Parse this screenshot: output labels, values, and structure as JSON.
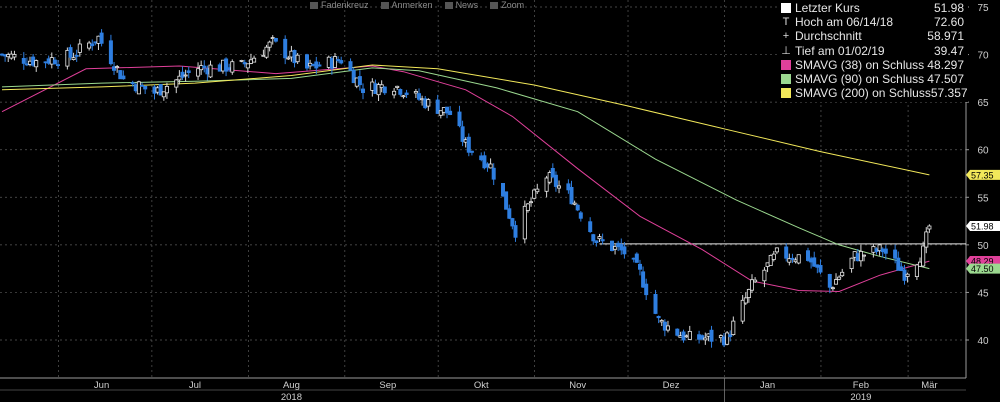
{
  "toolbar": {
    "items": [
      {
        "label": "Fadenkreuz",
        "icon": "crosshair-icon"
      },
      {
        "label": "Anmerken",
        "icon": "pencil-icon"
      },
      {
        "label": "News",
        "icon": "news-icon"
      },
      {
        "label": "Zoom",
        "icon": "zoom-icon"
      }
    ]
  },
  "legend": {
    "rows": [
      {
        "label": "Letzter Kurs",
        "value": "51.98",
        "marker": "square",
        "color": "#ffffff"
      },
      {
        "label": "Hoch am 06/14/18",
        "value": "72.60",
        "marker": "T"
      },
      {
        "label": "Durchschnitt",
        "value": "58.971",
        "marker": "+"
      },
      {
        "label": "Tief am 01/02/19",
        "value": "39.47",
        "marker": "⊥"
      },
      {
        "label": "SMAVG (38)  on Schluss",
        "value": "48.297",
        "marker": "square",
        "color": "#e0409a"
      },
      {
        "label": "SMAVG (90)  on Schluss",
        "value": "47.507",
        "marker": "square",
        "color": "#9bd88f"
      },
      {
        "label": "SMAVG (200)  on Schluss",
        "value": "57.357",
        "marker": "square",
        "color": "#f2e85a"
      }
    ]
  },
  "chart_data": {
    "type": "candlestick",
    "x_labels": [
      "Jun",
      "Jul",
      "Aug",
      "Sep",
      "Okt",
      "Nov",
      "Dez",
      "Jan",
      "Feb",
      "Mär"
    ],
    "year_labels": [
      "2018",
      "2019"
    ],
    "yticks": [
      40,
      45,
      50,
      55,
      60,
      65,
      70,
      75
    ],
    "ylim": [
      38,
      75.5
    ],
    "grid": true,
    "reference_line": 50.1,
    "right_tags": [
      {
        "text": "57.35",
        "value": 57.357,
        "color": "#f2e85a"
      },
      {
        "text": "51.98",
        "value": 51.98,
        "color": "#ffffff"
      },
      {
        "text": "48.29",
        "value": 48.297,
        "color": "#e0409a"
      },
      {
        "text": "47.50",
        "value": 47.507,
        "color": "#9bd88f"
      }
    ],
    "close_anchors": [
      [
        "2018-05-14",
        70.0
      ],
      [
        "2018-05-25",
        69.3
      ],
      [
        "2018-06-05",
        69.8
      ],
      [
        "2018-06-14",
        71.8
      ],
      [
        "2018-06-22",
        67.4
      ],
      [
        "2018-07-02",
        66.0
      ],
      [
        "2018-07-16",
        68.6
      ],
      [
        "2018-07-30",
        68.8
      ],
      [
        "2018-08-09",
        71.2
      ],
      [
        "2018-08-20",
        68.5
      ],
      [
        "2018-08-31",
        69.5
      ],
      [
        "2018-09-07",
        66.5
      ],
      [
        "2018-09-17",
        66.8
      ],
      [
        "2018-09-27",
        65.0
      ],
      [
        "2018-10-05",
        63.8
      ],
      [
        "2018-10-10",
        60.5
      ],
      [
        "2018-10-18",
        58.3
      ],
      [
        "2018-10-26",
        51.5
      ],
      [
        "2018-10-30",
        54.0
      ],
      [
        "2018-11-05",
        57.2
      ],
      [
        "2018-11-13",
        55.0
      ],
      [
        "2018-11-21",
        50.5
      ],
      [
        "2018-11-30",
        49.2
      ],
      [
        "2018-12-05",
        47.0
      ],
      [
        "2018-12-11",
        42.0
      ],
      [
        "2018-12-20",
        40.2
      ],
      [
        "2019-01-02",
        40.2
      ],
      [
        "2019-01-10",
        45.7
      ],
      [
        "2019-01-18",
        49.0
      ],
      [
        "2019-01-28",
        48.7
      ],
      [
        "2019-02-04",
        45.5
      ],
      [
        "2019-02-12",
        48.8
      ],
      [
        "2019-02-21",
        49.5
      ],
      [
        "2019-02-28",
        47.0
      ],
      [
        "2019-03-06",
        49.3
      ],
      [
        "2019-03-08",
        51.98
      ]
    ],
    "sma_series": [
      {
        "name": "SMAVG (38)",
        "color": "#e0409a",
        "points": [
          [
            "2018-05-14",
            64.0
          ],
          [
            "2018-06-10",
            68.5
          ],
          [
            "2018-07-10",
            68.8
          ],
          [
            "2018-08-10",
            68.0
          ],
          [
            "2018-09-10",
            68.8
          ],
          [
            "2018-09-20",
            68.2
          ],
          [
            "2018-10-10",
            66.3
          ],
          [
            "2018-10-25",
            63.5
          ],
          [
            "2018-11-15",
            58.0
          ],
          [
            "2018-12-05",
            53.0
          ],
          [
            "2018-12-25",
            49.5
          ],
          [
            "2019-01-10",
            46.2
          ],
          [
            "2019-01-25",
            45.2
          ],
          [
            "2019-02-07",
            45.1
          ],
          [
            "2019-02-20",
            46.8
          ],
          [
            "2019-03-08",
            48.297
          ]
        ]
      },
      {
        "name": "SMAVG (90)",
        "color": "#9bd88f",
        "points": [
          [
            "2018-05-14",
            66.6
          ],
          [
            "2018-06-15",
            67.0
          ],
          [
            "2018-07-15",
            67.2
          ],
          [
            "2018-08-15",
            67.5
          ],
          [
            "2018-09-10",
            68.6
          ],
          [
            "2018-09-25",
            68.3
          ],
          [
            "2018-10-20",
            66.5
          ],
          [
            "2018-11-15",
            64.0
          ],
          [
            "2018-12-10",
            59.0
          ],
          [
            "2019-01-05",
            54.7
          ],
          [
            "2019-01-25",
            51.8
          ],
          [
            "2019-02-07",
            50.0
          ],
          [
            "2019-02-20",
            48.8
          ],
          [
            "2019-03-08",
            47.507
          ]
        ]
      },
      {
        "name": "SMAVG (200)",
        "color": "#f2e85a",
        "points": [
          [
            "2018-05-14",
            66.3
          ],
          [
            "2018-06-15",
            66.6
          ],
          [
            "2018-07-15",
            67.0
          ],
          [
            "2018-08-15",
            67.8
          ],
          [
            "2018-09-10",
            68.9
          ],
          [
            "2018-10-01",
            68.5
          ],
          [
            "2018-11-01",
            66.8
          ],
          [
            "2018-12-01",
            64.6
          ],
          [
            "2019-01-01",
            62.2
          ],
          [
            "2019-02-01",
            59.8
          ],
          [
            "2019-03-08",
            57.357
          ]
        ]
      }
    ]
  }
}
